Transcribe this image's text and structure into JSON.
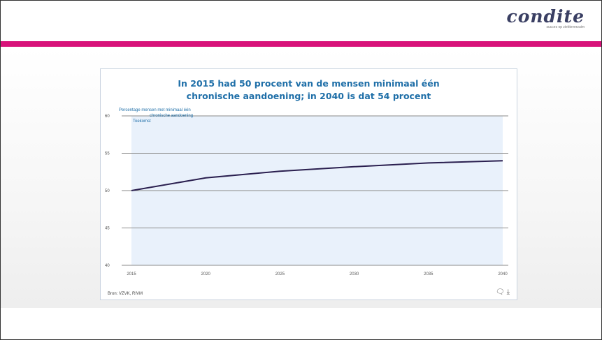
{
  "brand": {
    "name": "condite",
    "tagline": "succes op ziekteverzuim"
  },
  "colors": {
    "accent": "#d8137a",
    "title": "#1f6fa8",
    "line": "#2a1f4f",
    "plot_bg": "#e9f1fb",
    "grid": "#8a8a8a"
  },
  "chart_data": {
    "type": "line",
    "title_line1": "In 2015 had 50 procent van de mensen minimaal één",
    "title_line2": "chronische aandoening; in 2040 is dat 54 procent",
    "ylabel_line1": "Percentage mensen met minimaal één",
    "ylabel_line2": "chronische aandoening",
    "legend_label": "Toekomst",
    "x": [
      2015,
      2020,
      2025,
      2030,
      2035,
      2040
    ],
    "x_tick_labels": [
      "2015",
      "2020",
      "2025",
      "2030",
      "2035",
      "2040"
    ],
    "y_tick_labels": [
      "60",
      "55",
      "50",
      "45",
      "40"
    ],
    "ylim": [
      40,
      60
    ],
    "series": [
      {
        "name": "Toekomst",
        "values": [
          50,
          51.7,
          52.6,
          53.2,
          53.7,
          54
        ]
      }
    ],
    "source": "Bron: VZVK, RIVM",
    "grid": true
  },
  "icons": [
    "comment-icon",
    "download-icon"
  ]
}
